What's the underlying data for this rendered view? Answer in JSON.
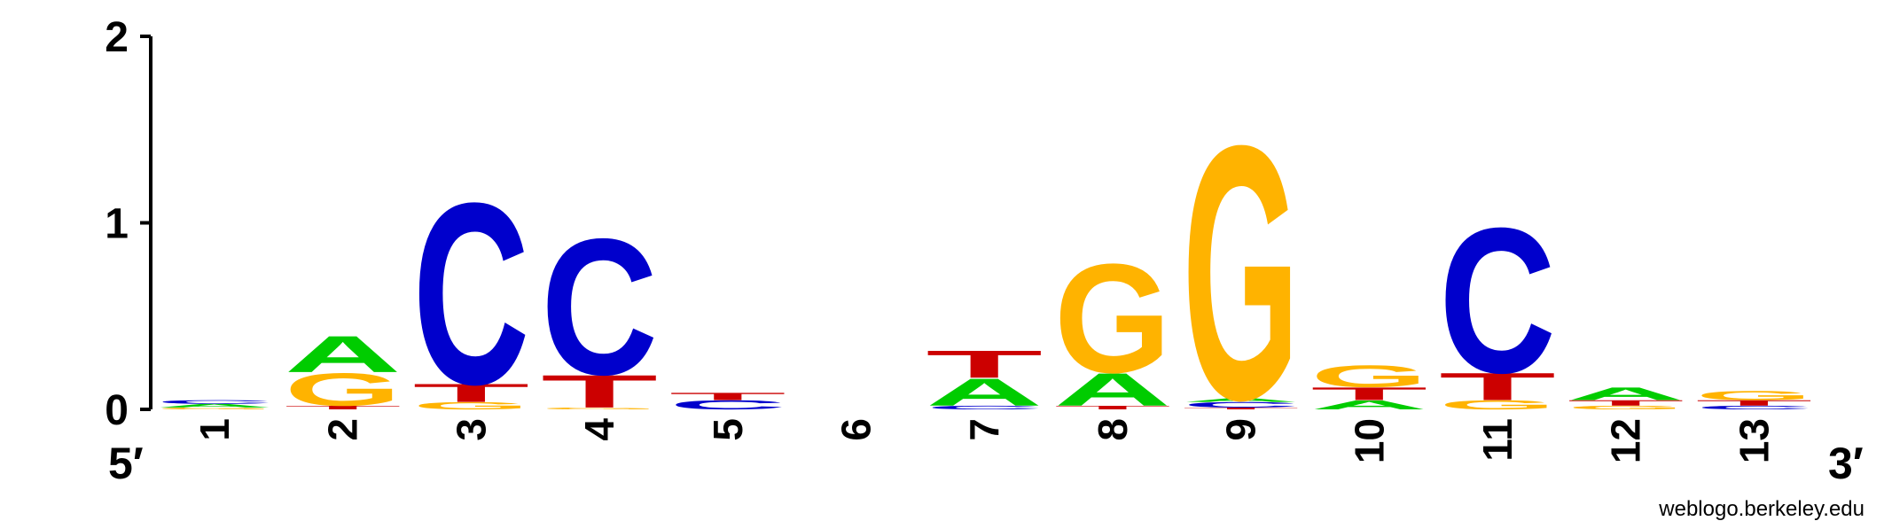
{
  "chart_data": {
    "type": "sequence-logo",
    "yticks": [
      "0",
      "1",
      "2"
    ],
    "ylim": [
      0,
      2
    ],
    "end_labels": {
      "left": "5′",
      "right": "3′"
    },
    "credit": "weblogo.berkeley.edu",
    "base_colors": {
      "A": "#00cc00",
      "C": "#0000cc",
      "G": "#ffb300",
      "T": "#cc0000"
    },
    "positions": [
      {
        "label": "1",
        "stack": [
          [
            "G",
            0.01
          ],
          [
            "A",
            0.02
          ],
          [
            "C",
            0.02
          ]
        ]
      },
      {
        "label": "2",
        "stack": [
          [
            "T",
            0.02
          ],
          [
            "G",
            0.18
          ],
          [
            "A",
            0.2
          ]
        ]
      },
      {
        "label": "3",
        "stack": [
          [
            "G",
            0.04
          ],
          [
            "T",
            0.1
          ],
          [
            "C",
            1.0
          ]
        ]
      },
      {
        "label": "4",
        "stack": [
          [
            "G",
            0.01
          ],
          [
            "T",
            0.18
          ],
          [
            "C",
            0.75
          ]
        ]
      },
      {
        "label": "5",
        "stack": [
          [
            "C",
            0.05
          ],
          [
            "T",
            0.04
          ]
        ]
      },
      {
        "label": "6",
        "stack": []
      },
      {
        "label": "7",
        "stack": [
          [
            "C",
            0.02
          ],
          [
            "A",
            0.15
          ],
          [
            "T",
            0.15
          ]
        ]
      },
      {
        "label": "8",
        "stack": [
          [
            "T",
            0.02
          ],
          [
            "A",
            0.18
          ],
          [
            "G",
            0.6
          ]
        ]
      },
      {
        "label": "9",
        "stack": [
          [
            "T",
            0.01
          ],
          [
            "C",
            0.03
          ],
          [
            "A",
            0.02
          ],
          [
            "G",
            1.4
          ]
        ]
      },
      {
        "label": "10",
        "stack": [
          [
            "A",
            0.05
          ],
          [
            "T",
            0.07
          ],
          [
            "G",
            0.12
          ]
        ]
      },
      {
        "label": "11",
        "stack": [
          [
            "G",
            0.05
          ],
          [
            "T",
            0.15
          ],
          [
            "C",
            0.8
          ]
        ]
      },
      {
        "label": "12",
        "stack": [
          [
            "G",
            0.02
          ],
          [
            "T",
            0.03
          ],
          [
            "A",
            0.07
          ]
        ]
      },
      {
        "label": "13",
        "stack": [
          [
            "C",
            0.02
          ],
          [
            "T",
            0.03
          ],
          [
            "G",
            0.05
          ]
        ]
      }
    ]
  }
}
